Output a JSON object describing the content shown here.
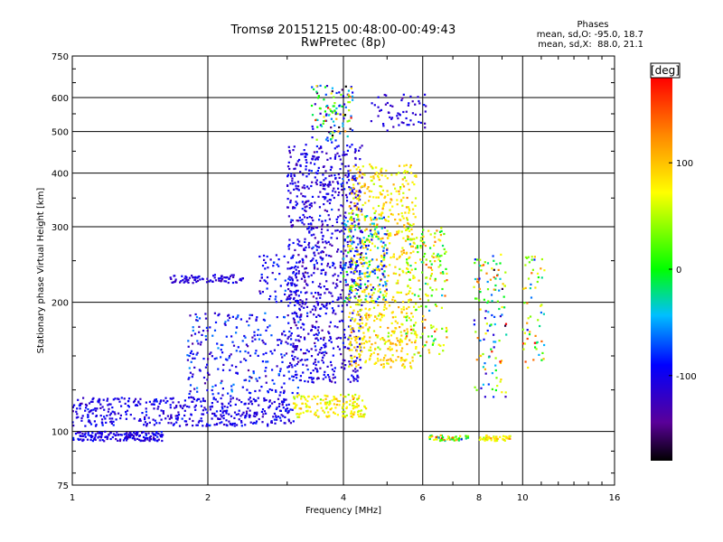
{
  "header": {
    "title_line1": "Tromsø 20151215 00:48:00-00:49:43",
    "title_line2": "RwPretec (8p)"
  },
  "phases_box": {
    "heading": "Phases",
    "o_line": "mean, sd,O: -95.0, 18.7",
    "x_line": "mean, sd,X:  88.0, 21.1"
  },
  "colorbar": {
    "unit": "[deg]",
    "ticks": [
      "100",
      "0",
      "-100"
    ],
    "tick_values": [
      100,
      0,
      -100
    ],
    "range": [
      -180,
      180
    ]
  },
  "chart_data": {
    "type": "scatter",
    "xlabel": "Frequency [MHz]",
    "ylabel": "Stationary phase Virtual Height [km]",
    "xscale": "log",
    "yscale": "log",
    "xlim": [
      1,
      16
    ],
    "ylim": [
      75,
      750
    ],
    "xticks": [
      1,
      2,
      4,
      6,
      8,
      10,
      16
    ],
    "xtick_labels": [
      "1",
      "2",
      "4",
      "6",
      "8",
      "10",
      "16"
    ],
    "yticks": [
      75,
      100,
      200,
      300,
      400,
      500,
      600,
      750
    ],
    "ytick_labels": [
      "75",
      "100",
      "200",
      "300",
      "400",
      "500",
      "600",
      "750"
    ],
    "grid": true,
    "color_variable": "phase [deg]",
    "point_clusters": [
      {
        "f_min": 1.0,
        "f_max": 1.6,
        "h_min": 95,
        "h_max": 100,
        "phase_mean": -105,
        "phase_sd": 12,
        "n": 160
      },
      {
        "f_min": 1.0,
        "f_max": 3.1,
        "h_min": 103,
        "h_max": 120,
        "phase_mean": -105,
        "phase_sd": 12,
        "n": 450
      },
      {
        "f_min": 1.65,
        "f_max": 2.4,
        "h_min": 222,
        "h_max": 232,
        "phase_mean": -110,
        "phase_sd": 10,
        "n": 80
      },
      {
        "f_min": 1.8,
        "f_max": 3.2,
        "h_min": 120,
        "h_max": 190,
        "phase_mean": -95,
        "phase_sd": 22,
        "n": 280
      },
      {
        "f_min": 2.6,
        "f_max": 3.2,
        "h_min": 200,
        "h_max": 260,
        "phase_mean": -100,
        "phase_sd": 15,
        "n": 70
      },
      {
        "f_min": 3.0,
        "f_max": 4.4,
        "h_min": 130,
        "h_max": 470,
        "phase_mean": -108,
        "phase_sd": 16,
        "n": 900
      },
      {
        "f_min": 3.4,
        "f_max": 4.2,
        "h_min": 470,
        "h_max": 640,
        "phase_mean": -20,
        "phase_sd": 90,
        "n": 120
      },
      {
        "f_min": 3.1,
        "f_max": 4.5,
        "h_min": 108,
        "h_max": 122,
        "phase_mean": 75,
        "phase_sd": 18,
        "n": 160
      },
      {
        "f_min": 4.1,
        "f_max": 5.8,
        "h_min": 140,
        "h_max": 420,
        "phase_mean": 85,
        "phase_sd": 20,
        "n": 700
      },
      {
        "f_min": 4.0,
        "f_max": 5.0,
        "h_min": 200,
        "h_max": 320,
        "phase_mean": -60,
        "phase_sd": 40,
        "n": 160
      },
      {
        "f_min": 4.6,
        "f_max": 6.1,
        "h_min": 500,
        "h_max": 610,
        "phase_mean": -110,
        "phase_sd": 12,
        "n": 60
      },
      {
        "f_min": 5.5,
        "f_max": 6.8,
        "h_min": 150,
        "h_max": 300,
        "phase_mean": 60,
        "phase_sd": 45,
        "n": 180
      },
      {
        "f_min": 6.2,
        "f_max": 7.6,
        "h_min": 95,
        "h_max": 98,
        "phase_mean": 40,
        "phase_sd": 60,
        "n": 50
      },
      {
        "f_min": 8.0,
        "f_max": 9.4,
        "h_min": 95,
        "h_max": 98,
        "phase_mean": 80,
        "phase_sd": 25,
        "n": 45
      },
      {
        "f_min": 7.8,
        "f_max": 9.2,
        "h_min": 120,
        "h_max": 260,
        "phase_mean": 20,
        "phase_sd": 80,
        "n": 120
      },
      {
        "f_min": 10.0,
        "f_max": 11.2,
        "h_min": 140,
        "h_max": 260,
        "phase_mean": 40,
        "phase_sd": 70,
        "n": 60
      }
    ]
  }
}
